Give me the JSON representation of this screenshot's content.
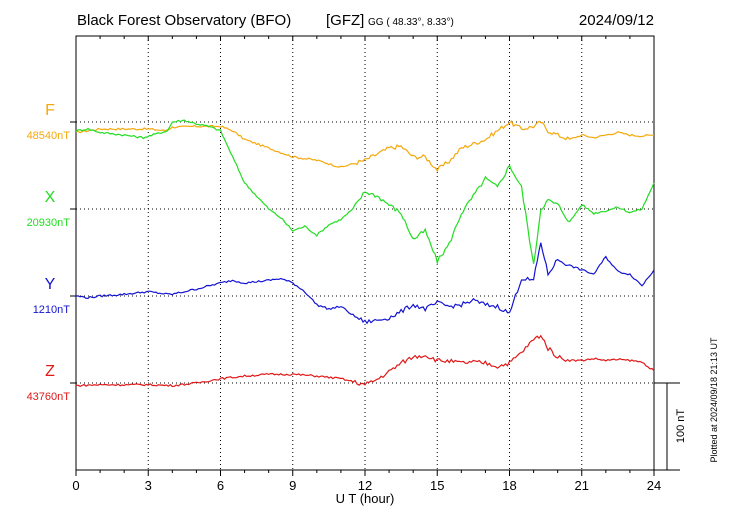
{
  "header": {
    "title": "Black Forest Observatory (BFO)",
    "institute": "[GFZ]",
    "coords": "GG ( 48.33°,   8.33°)",
    "date": "2024/09/12"
  },
  "plotted_note": "Plotted at 2024/09/18 21:13 UT",
  "scale_label": "100 nT",
  "chart_data": {
    "type": "line",
    "xlabel": "U T (hour)",
    "xlim": [
      0,
      24
    ],
    "xticks": [
      "0",
      "3",
      "6",
      "9",
      "12",
      "15",
      "18",
      "21",
      "24"
    ],
    "grid": true,
    "scale_bar_nT": 100,
    "series": [
      {
        "name": "F",
        "baseline": "48540nT",
        "color": "#f5a80a",
        "base_value": 48540,
        "x": [
          0,
          0.5,
          1,
          2,
          3,
          3.7,
          4,
          5,
          6,
          6.5,
          7,
          8,
          9,
          10,
          11,
          12,
          13,
          13.5,
          14,
          14.5,
          15,
          15.5,
          16,
          16.5,
          17,
          17.5,
          18,
          18.5,
          19,
          19.3,
          19.6,
          20,
          20.5,
          21,
          21.5,
          22,
          22.5,
          23,
          23.5,
          24
        ],
        "y": [
          48528,
          48530,
          48532,
          48532,
          48532,
          48530,
          48534,
          48535,
          48535,
          48530,
          48520,
          48510,
          48500,
          48496,
          48488,
          48496,
          48510,
          48512,
          48500,
          48500,
          48485,
          48495,
          48510,
          48515,
          48520,
          48530,
          48540,
          48532,
          48535,
          48540,
          48530,
          48525,
          48520,
          48525,
          48522,
          48525,
          48528,
          48525,
          48524,
          48525
        ]
      },
      {
        "name": "X",
        "baseline": "20930nT",
        "color": "#22dd22",
        "base_value": 20930,
        "x": [
          0,
          0.5,
          1,
          2,
          2.8,
          3.8,
          4,
          4.5,
          5,
          5.5,
          6,
          6.5,
          7,
          7.5,
          8,
          8.5,
          9,
          9.5,
          10,
          10.5,
          11,
          11.5,
          12,
          12.5,
          13,
          13.5,
          14,
          14.5,
          15,
          15.5,
          16,
          16.5,
          17,
          17.5,
          18,
          18.5,
          19,
          19.3,
          19.6,
          20,
          20.5,
          21,
          21.5,
          22,
          22.5,
          23,
          23.5,
          24
        ],
        "y": [
          21020,
          21022,
          21018,
          21015,
          21012,
          21020,
          21030,
          21032,
          21028,
          21025,
          21020,
          20990,
          20960,
          20945,
          20930,
          20920,
          20905,
          20910,
          20900,
          20912,
          20918,
          20930,
          20950,
          20945,
          20935,
          20925,
          20895,
          20905,
          20870,
          20890,
          20925,
          20945,
          20965,
          20955,
          20980,
          20955,
          20865,
          20930,
          20940,
          20935,
          20915,
          20935,
          20925,
          20928,
          20932,
          20926,
          20930,
          20960
        ]
      },
      {
        "name": "Y",
        "baseline": "1210nT",
        "color": "#1414d2",
        "base_value": 1210,
        "x": [
          0,
          0.5,
          1,
          2,
          3,
          3.8,
          4,
          5,
          6,
          6.5,
          7,
          8,
          8.5,
          9,
          9.5,
          10,
          10.5,
          11,
          11.5,
          12,
          12.5,
          13,
          13.5,
          14,
          14.5,
          15,
          15.5,
          16,
          16.5,
          17,
          17.5,
          18,
          18.5,
          19,
          19.3,
          19.6,
          20,
          20.5,
          21,
          21.5,
          22,
          22.5,
          23,
          23.5,
          24
        ],
        "y": [
          1210,
          1208,
          1210,
          1212,
          1215,
          1212,
          1212,
          1218,
          1225,
          1228,
          1225,
          1228,
          1230,
          1225,
          1215,
          1200,
          1195,
          1198,
          1188,
          1180,
          1182,
          1185,
          1192,
          1200,
          1195,
          1202,
          1198,
          1200,
          1205,
          1200,
          1198,
          1190,
          1230,
          1228,
          1272,
          1235,
          1252,
          1245,
          1240,
          1235,
          1255,
          1238,
          1235,
          1222,
          1240
        ]
      },
      {
        "name": "Z",
        "baseline": "43760nT",
        "color": "#e01818",
        "base_value": 43760,
        "x": [
          0,
          1,
          2,
          3,
          4,
          5,
          6,
          7,
          8,
          9,
          10,
          11,
          12,
          12.5,
          13,
          13.5,
          14,
          14.5,
          15,
          15.5,
          16,
          16.5,
          17,
          17.5,
          18,
          18.5,
          19,
          19.3,
          19.6,
          20,
          20.5,
          21,
          21.5,
          22,
          22.5,
          23,
          23.5,
          24
        ],
        "y": [
          43757,
          43758,
          43758,
          43758,
          43757,
          43760,
          43765,
          43768,
          43770,
          43770,
          43768,
          43765,
          43758,
          43764,
          43773,
          43783,
          43790,
          43792,
          43786,
          43785,
          43783,
          43784,
          43783,
          43779,
          43783,
          43795,
          43810,
          43815,
          43800,
          43790,
          43786,
          43786,
          43788,
          43786,
          43787,
          43786,
          43784,
          43774
        ]
      }
    ]
  }
}
